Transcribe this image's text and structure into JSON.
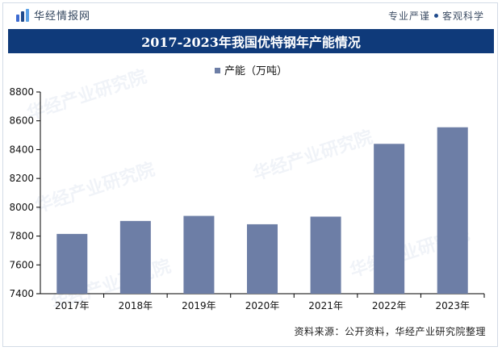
{
  "header": {
    "brand": "华经情报网",
    "slogan_left": "专业严谨",
    "slogan_right": "客观科学"
  },
  "title": "2017-2023年我国优特钢年产能情况",
  "source": "资料来源：公开资料，华经产业研究院整理",
  "watermark": "华经产业研究院",
  "colors": {
    "bar": "#6d7ea6",
    "title_bg": "#0f3a7a",
    "axis": "#000000"
  },
  "chart_data": {
    "type": "bar",
    "categories": [
      "2017年",
      "2018年",
      "2019年",
      "2020年",
      "2021年",
      "2022年",
      "2023年"
    ],
    "series": [
      {
        "name": "产能（万吨）",
        "values": [
          7815,
          7905,
          7940,
          7882,
          7935,
          8440,
          8555
        ]
      }
    ],
    "ylim": [
      7400,
      8800
    ],
    "yticks": [
      7400,
      7600,
      7800,
      8000,
      8200,
      8400,
      8600,
      8800
    ],
    "grid": false,
    "legend": "top-center"
  }
}
